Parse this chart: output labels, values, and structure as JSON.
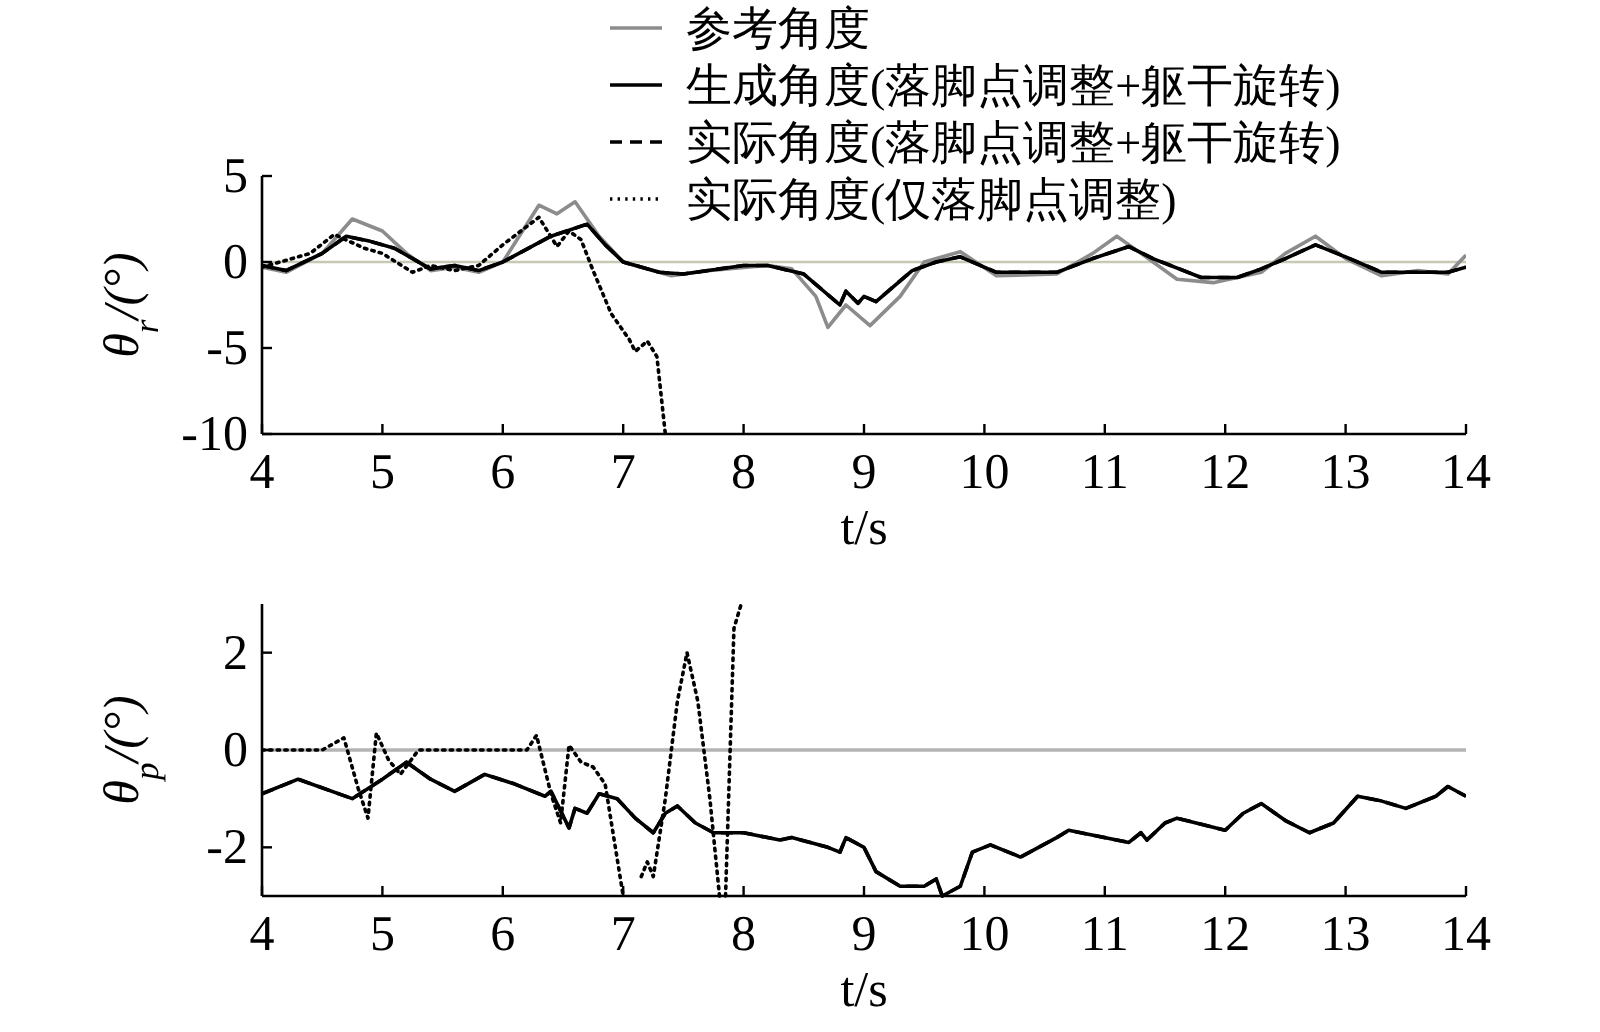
{
  "chart_data": [
    {
      "type": "line",
      "xlabel": "t/s",
      "ylabel": "θ$_{r}$/(°)",
      "xlim": [
        4,
        14
      ],
      "ylim": [
        -10,
        5
      ],
      "xticks": [
        4,
        5,
        6,
        7,
        8,
        9,
        10,
        11,
        12,
        13,
        14
      ],
      "yticks": [
        -10,
        -5,
        0,
        5
      ],
      "legend": "top right",
      "grid": false,
      "ref_lines": [
        {
          "axis": "y",
          "value": 0,
          "color": "#c8c8b4",
          "line_style": "solid"
        }
      ],
      "series": [
        {
          "name": "参考角度",
          "color": "#8c8c8c",
          "line_style": "solid",
          "x": [
            4,
            4.2,
            4.5,
            4.75,
            5.0,
            5.2,
            5.4,
            5.6,
            5.8,
            6.0,
            6.3,
            6.45,
            6.6,
            6.8,
            7.0,
            7.4,
            7.7,
            8.2,
            8.4,
            8.6,
            8.7,
            8.85,
            9.05,
            9.3,
            9.5,
            9.8,
            10.1,
            10.6,
            10.9,
            11.1,
            11.3,
            11.6,
            11.9,
            12.3,
            12.5,
            12.75,
            13.0,
            13.3,
            13.6,
            13.85,
            14
          ],
          "values": [
            -0.3,
            -0.6,
            0.5,
            2.5,
            1.8,
            0.5,
            -0.5,
            -0.3,
            -0.6,
            0,
            3.3,
            2.8,
            3.5,
            1.5,
            0,
            -0.8,
            -0.5,
            -0.2,
            -0.4,
            -2,
            -3.8,
            -2.5,
            -3.7,
            -2.0,
            0,
            0.6,
            -0.8,
            -0.7,
            0.5,
            1.5,
            0.5,
            -1.0,
            -1.2,
            -0.6,
            0.5,
            1.5,
            0.2,
            -0.8,
            -0.5,
            -0.7,
            0.4
          ]
        },
        {
          "name": "生成角度(落脚点调整+躯干旋转)",
          "color": "#000000",
          "line_style": "solid",
          "x": [
            4,
            4.2,
            4.5,
            4.7,
            4.9,
            5.1,
            5.4,
            5.6,
            5.8,
            6.0,
            6.4,
            6.7,
            6.85,
            7.0,
            7.3,
            7.5,
            8.0,
            8.2,
            8.5,
            8.8,
            8.85,
            8.95,
            9.0,
            9.1,
            9.4,
            9.6,
            9.8,
            10.1,
            10.6,
            10.9,
            11.2,
            11.4,
            11.8,
            12.1,
            12.3,
            12.5,
            12.75,
            13.0,
            13.3,
            13.6,
            13.85,
            14
          ],
          "values": [
            -0.2,
            -0.5,
            0.5,
            1.5,
            1.2,
            0.8,
            -0.4,
            -0.2,
            -0.5,
            0,
            1.5,
            2.2,
            1.0,
            0,
            -0.6,
            -0.7,
            -0.2,
            -0.2,
            -0.7,
            -2.5,
            -1.7,
            -2.4,
            -2.0,
            -2.3,
            -0.5,
            0,
            0.3,
            -0.6,
            -0.6,
            0.2,
            0.9,
            0.2,
            -0.9,
            -0.9,
            -0.4,
            0.2,
            1.0,
            0.3,
            -0.6,
            -0.6,
            -0.6,
            -0.3
          ]
        },
        {
          "name": "实际角度(落脚点调整+躯干旋转)",
          "color": "#000000",
          "line_style": "dashed",
          "x": [
            4,
            4.2,
            4.5,
            4.7,
            4.9,
            5.1,
            5.4,
            5.6,
            5.8,
            6.0,
            6.4,
            6.7,
            6.85,
            7.0,
            7.3,
            7.5,
            8.0,
            8.2,
            8.5,
            8.8,
            8.85,
            8.95,
            9.0,
            9.1,
            9.4,
            9.6,
            9.8,
            10.1,
            10.6,
            10.9,
            11.2,
            11.4,
            11.8,
            12.1,
            12.3,
            12.5,
            12.75,
            13.0,
            13.3,
            13.6,
            13.85,
            14
          ],
          "values": [
            -0.2,
            -0.5,
            0.5,
            1.5,
            1.2,
            0.8,
            -0.4,
            -0.2,
            -0.5,
            0,
            1.5,
            2.2,
            1.0,
            0,
            -0.6,
            -0.7,
            -0.2,
            -0.2,
            -0.7,
            -2.5,
            -1.7,
            -2.4,
            -2.0,
            -2.3,
            -0.5,
            0,
            0.3,
            -0.6,
            -0.6,
            0.2,
            0.9,
            0.2,
            -0.9,
            -0.9,
            -0.4,
            0.2,
            1.0,
            0.3,
            -0.6,
            -0.6,
            -0.6,
            -0.3
          ]
        },
        {
          "name": "实际角度(仅落脚点调整)",
          "color": "#000000",
          "line_style": "dotted",
          "x": [
            4,
            4.4,
            4.6,
            4.85,
            5.0,
            5.25,
            5.4,
            5.6,
            5.8,
            6.0,
            6.3,
            6.45,
            6.55,
            6.65,
            6.75,
            6.9,
            7.05,
            7.1,
            7.2,
            7.28,
            7.35
          ],
          "values": [
            -0.3,
            0.5,
            1.6,
            0.8,
            0.5,
            -0.6,
            -0.2,
            -0.5,
            -0.2,
            1.0,
            2.6,
            0.9,
            1.8,
            1.3,
            -0.5,
            -3,
            -4.5,
            -5.2,
            -4.6,
            -5.5,
            -10
          ]
        }
      ]
    },
    {
      "type": "line",
      "xlabel": "t/s",
      "ylabel": "θ$_{p}$/(°)",
      "xlim": [
        4,
        14
      ],
      "ylim": [
        -3,
        3
      ],
      "xticks": [
        4,
        5,
        6,
        7,
        8,
        9,
        10,
        11,
        12,
        13,
        14
      ],
      "yticks": [
        -2,
        0,
        2
      ],
      "legend": false,
      "grid": false,
      "series": [
        {
          "color": "#b4b4b4",
          "line_style": "solid",
          "x": [
            4,
            14
          ],
          "values": [
            0,
            0
          ]
        },
        {
          "color": "#000000",
          "line_style": "solid",
          "x": [
            4,
            4.3,
            4.75,
            5.0,
            5.2,
            5.4,
            5.6,
            5.85,
            6.1,
            6.35,
            6.4,
            6.55,
            6.6,
            6.7,
            6.8,
            6.95,
            7.1,
            7.25,
            7.35,
            7.45,
            7.6,
            7.75,
            8,
            8.3,
            8.4,
            8.7,
            8.8,
            8.85,
            9.0,
            9.1,
            9.3,
            9.5,
            9.6,
            9.65,
            9.8,
            9.9,
            10.05,
            10.3,
            10.6,
            10.7,
            11.2,
            11.3,
            11.35,
            11.5,
            11.6,
            12.0,
            12.15,
            12.3,
            12.5,
            12.7,
            12.9,
            13.1,
            13.3,
            13.5,
            13.75,
            13.85,
            14
          ],
          "values": [
            -0.9,
            -0.6,
            -1.0,
            -0.6,
            -0.25,
            -0.6,
            -0.85,
            -0.5,
            -0.7,
            -0.95,
            -0.85,
            -1.6,
            -1.2,
            -1.3,
            -0.9,
            -1.0,
            -1.4,
            -1.7,
            -1.3,
            -1.15,
            -1.5,
            -1.7,
            -1.7,
            -1.85,
            -1.8,
            -2.0,
            -2.1,
            -1.8,
            -2.0,
            -2.5,
            -2.8,
            -2.8,
            -2.65,
            -3.0,
            -2.8,
            -2.1,
            -1.95,
            -2.2,
            -1.8,
            -1.65,
            -1.9,
            -1.7,
            -1.85,
            -1.5,
            -1.4,
            -1.65,
            -1.3,
            -1.1,
            -1.45,
            -1.7,
            -1.5,
            -0.95,
            -1.05,
            -1.2,
            -0.95,
            -0.75,
            -0.95
          ]
        },
        {
          "color": "#000000",
          "line_style": "dashed",
          "x": [
            4,
            4.3,
            4.75,
            5.0,
            5.2,
            5.4,
            5.6,
            5.85,
            6.1,
            6.35,
            6.4,
            6.55,
            6.6,
            6.7,
            6.8,
            6.95,
            7.1,
            7.25,
            7.35,
            7.45,
            7.6,
            7.75,
            8,
            8.3,
            8.4,
            8.7,
            8.8,
            8.85,
            9.0,
            9.1,
            9.3,
            9.5,
            9.6,
            9.65,
            9.8,
            9.9,
            10.05,
            10.3,
            10.6,
            10.7,
            11.2,
            11.3,
            11.35,
            11.5,
            11.6,
            12.0,
            12.15,
            12.3,
            12.5,
            12.7,
            12.9,
            13.1,
            13.3,
            13.5,
            13.75,
            13.85,
            14
          ],
          "values": [
            -0.9,
            -0.6,
            -1.0,
            -0.6,
            -0.25,
            -0.6,
            -0.85,
            -0.5,
            -0.7,
            -0.95,
            -0.85,
            -1.6,
            -1.2,
            -1.3,
            -0.9,
            -1.0,
            -1.4,
            -1.7,
            -1.3,
            -1.15,
            -1.5,
            -1.7,
            -1.7,
            -1.85,
            -1.8,
            -2.0,
            -2.1,
            -1.8,
            -2.0,
            -2.5,
            -2.8,
            -2.8,
            -2.65,
            -3.0,
            -2.8,
            -2.1,
            -1.95,
            -2.2,
            -1.8,
            -1.65,
            -1.9,
            -1.7,
            -1.85,
            -1.5,
            -1.4,
            -1.65,
            -1.3,
            -1.1,
            -1.45,
            -1.7,
            -1.5,
            -0.95,
            -1.05,
            -1.2,
            -0.95,
            -0.75,
            -0.95
          ]
        },
        {
          "color": "#000000",
          "line_style": "dotted",
          "x": [
            4,
            4.5,
            4.68,
            4.8,
            4.88,
            4.95,
            5.05,
            5.15,
            5.3,
            6.2,
            6.28,
            6.4,
            6.48,
            6.55,
            6.65,
            6.75,
            6.85,
            7.0
          ],
          "values": [
            0,
            0,
            0.25,
            -0.8,
            -1.4,
            0.35,
            -0.2,
            -0.5,
            0,
            0,
            0.3,
            -0.9,
            -1.5,
            0.1,
            -0.25,
            -0.35,
            -0.7,
            -3
          ]
        },
        {
          "color": "#000000",
          "line_style": "dotted",
          "x": [
            7.15,
            7.2,
            7.25,
            7.35,
            7.45,
            7.53,
            7.62,
            7.72,
            7.8
          ],
          "values": [
            -2.6,
            -2.3,
            -2.6,
            -1.0,
            1.0,
            2.0,
            1.0,
            -1.0,
            -3
          ]
        },
        {
          "color": "#000000",
          "line_style": "dotted",
          "x": [
            7.85,
            7.92,
            7.98
          ],
          "values": [
            -3,
            2.5,
            3
          ]
        }
      ]
    }
  ]
}
